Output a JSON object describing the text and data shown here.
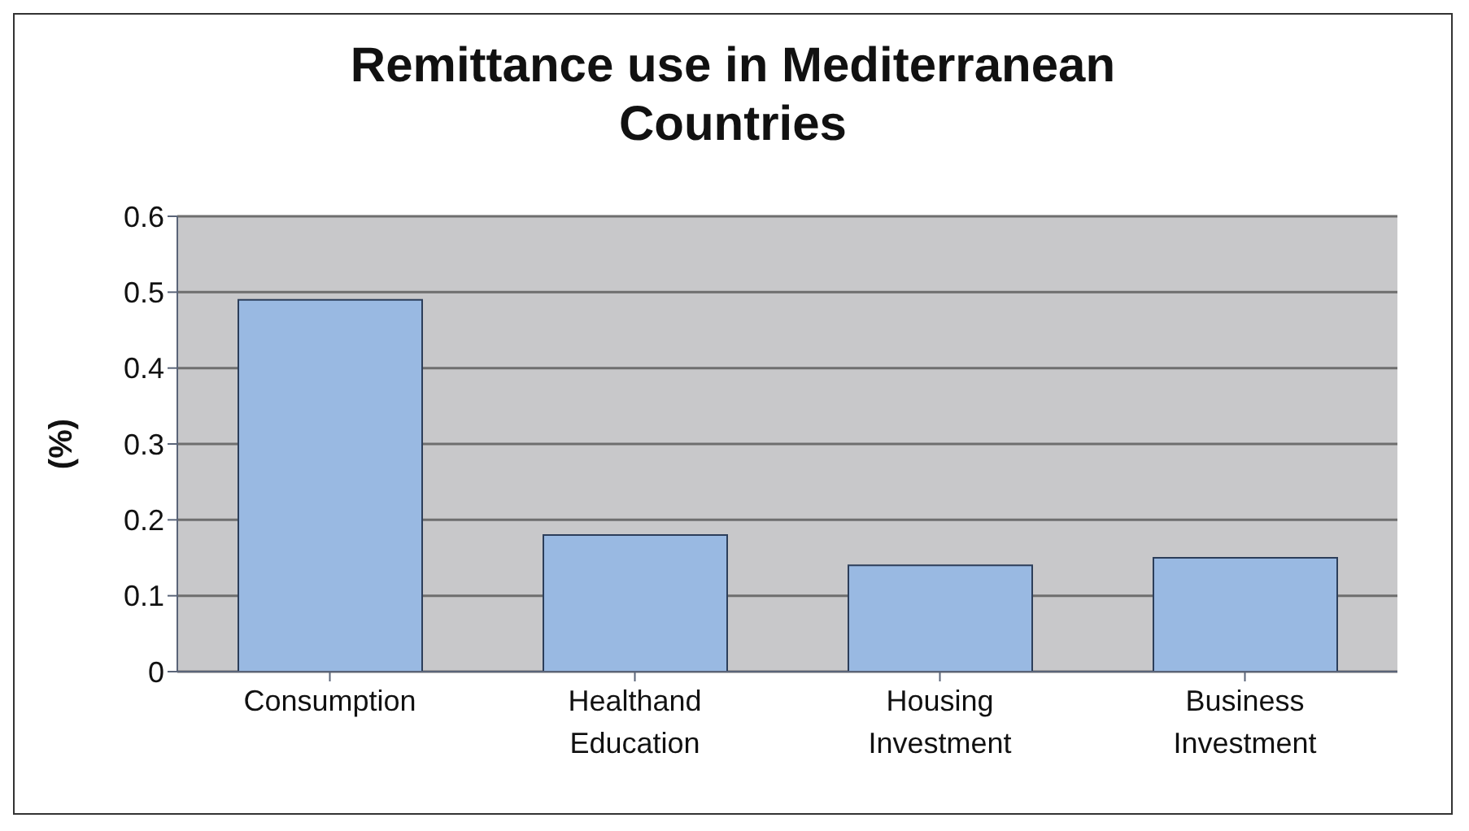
{
  "chart_data": {
    "type": "bar",
    "title": "Remittance use in Mediterranean Countries",
    "ylabel": "(%)",
    "categories": [
      "Consumption",
      "Healthand Education",
      "Housing Investment",
      "Business Investment"
    ],
    "values": [
      0.49,
      0.18,
      0.14,
      0.15
    ],
    "color": "#99b9e2",
    "ylim": [
      0,
      0.6
    ],
    "yticks": [
      0,
      0.1,
      0.2,
      0.3,
      0.4,
      0.5,
      0.6
    ],
    "grid": "y"
  }
}
